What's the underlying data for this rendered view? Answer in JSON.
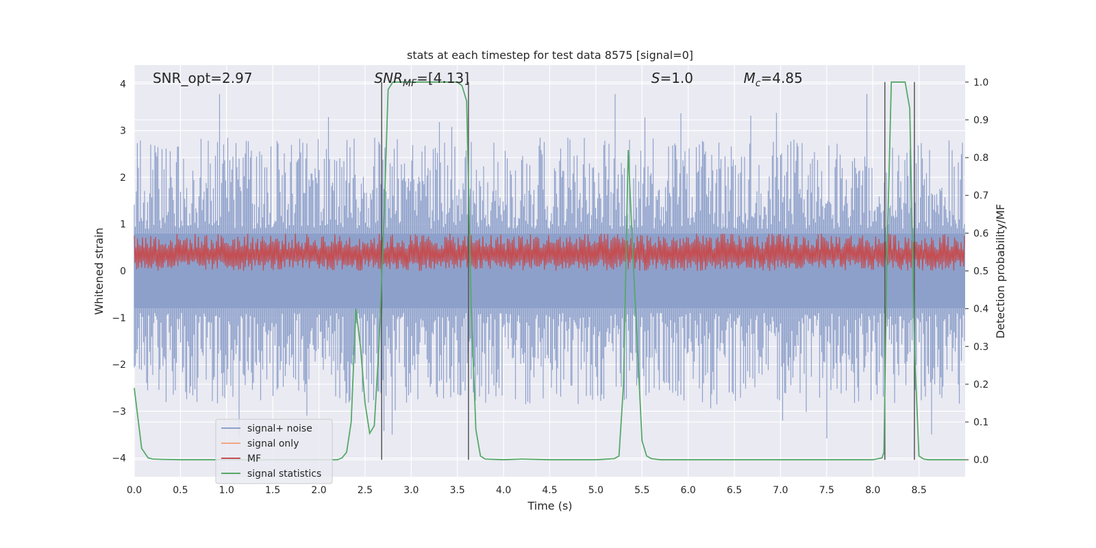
{
  "chart_data": {
    "type": "line",
    "title": "stats at each timestep for test data 8575 [signal=0]",
    "xlabel": "Time (s)",
    "ylabel": "Whitened strain",
    "y2label": "Detection probability/MF",
    "xlim": [
      0.0,
      9.0
    ],
    "ylim": [
      -4.4,
      4.4
    ],
    "y2lim": [
      -0.045,
      1.045
    ],
    "xticks": [
      "0.0",
      "0.5",
      "1.0",
      "1.5",
      "2.0",
      "2.5",
      "3.0",
      "3.5",
      "4.0",
      "4.5",
      "5.0",
      "5.5",
      "6.0",
      "6.5",
      "7.0",
      "7.5",
      "8.0",
      "8.5"
    ],
    "yticks": [
      "−4",
      "−3",
      "−2",
      "−1",
      "0",
      "1",
      "2",
      "3",
      "4"
    ],
    "y2ticks": [
      "0.0",
      "0.1",
      "0.2",
      "0.3",
      "0.4",
      "0.5",
      "0.6",
      "0.7",
      "0.8",
      "0.9",
      "1.0"
    ],
    "annotations": [
      {
        "text": "SNR_opt=2.97",
        "x": 0.2
      },
      {
        "text": "SNR",
        "sub": "MF",
        "suffix": "=[4.13]",
        "italic": true,
        "x": 2.6
      },
      {
        "text": "S",
        "suffix": "=1.0",
        "italic": true,
        "x": 5.6
      },
      {
        "text": "M",
        "sub": "c",
        "suffix": "=4.85",
        "italic": true,
        "x": 6.6
      }
    ],
    "legend": {
      "position": "lower-left",
      "entries": [
        {
          "label": "signal+ noise",
          "color": "#8da0cb"
        },
        {
          "label": "signal only",
          "color": "#f4a582"
        },
        {
          "label": "MF",
          "color": "#c44e52"
        },
        {
          "label": "signal statistics",
          "color": "#55a868"
        }
      ]
    },
    "series": [
      {
        "name": "signal statistics",
        "axis": "right",
        "x": [
          0.0,
          0.08,
          0.15,
          0.2,
          0.3,
          0.5,
          1.0,
          1.5,
          2.0,
          2.2,
          2.25,
          2.3,
          2.35,
          2.4,
          2.45,
          2.5,
          2.55,
          2.6,
          2.65,
          2.7,
          2.75,
          2.8,
          2.9,
          3.0,
          3.5,
          3.55,
          3.6,
          3.65,
          3.7,
          3.75,
          3.8,
          4.0,
          4.2,
          4.5,
          5.0,
          5.2,
          5.25,
          5.3,
          5.35,
          5.4,
          5.45,
          5.5,
          5.55,
          5.6,
          5.7,
          6.0,
          7.0,
          8.0,
          8.1,
          8.12,
          8.15,
          8.2,
          8.25,
          8.3,
          8.35,
          8.4,
          8.45,
          8.5,
          8.55,
          8.6,
          8.7,
          9.0
        ],
        "values": [
          0.19,
          0.03,
          0.005,
          0.002,
          0.001,
          0.0,
          0.0,
          0.0,
          0.0,
          0.0,
          0.005,
          0.02,
          0.1,
          0.4,
          0.3,
          0.15,
          0.07,
          0.09,
          0.3,
          0.6,
          0.98,
          1.0,
          1.0,
          1.0,
          1.0,
          0.99,
          0.95,
          0.4,
          0.08,
          0.01,
          0.002,
          0.0,
          0.002,
          0.0,
          0.0,
          0.003,
          0.01,
          0.2,
          0.82,
          0.55,
          0.3,
          0.05,
          0.01,
          0.003,
          0.0,
          0.0,
          0.0,
          0.0,
          0.005,
          0.02,
          0.5,
          1.0,
          1.0,
          1.0,
          1.0,
          0.93,
          0.3,
          0.01,
          0.002,
          0.0,
          0.0,
          0.0
        ]
      }
    ],
    "vlines": [
      2.68,
      3.62,
      8.13,
      8.45
    ],
    "noise_band": {
      "series": "signal+ noise",
      "typical_abs": 1.5,
      "peak_max": 3.8,
      "peak_min": -3.8
    },
    "mf_band": {
      "series": "MF",
      "low": 0.0,
      "high": 0.8,
      "axis": "left"
    }
  }
}
